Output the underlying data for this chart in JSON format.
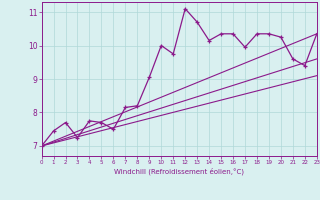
{
  "xlabel": "Windchill (Refroidissement éolien,°C)",
  "ylabel": "",
  "background_color": "#d9f0f0",
  "line_color": "#8b1a8b",
  "grid_color": "#b0d8d8",
  "xlim": [
    0,
    23
  ],
  "ylim": [
    6.7,
    11.3
  ],
  "yticks": [
    7,
    8,
    9,
    10,
    11
  ],
  "xticks": [
    0,
    1,
    2,
    3,
    4,
    5,
    6,
    7,
    8,
    9,
    10,
    11,
    12,
    13,
    14,
    15,
    16,
    17,
    18,
    19,
    20,
    21,
    22,
    23
  ],
  "series1_x": [
    0,
    1,
    2,
    3,
    4,
    5,
    6,
    7,
    8,
    9,
    10,
    11,
    12,
    13,
    14,
    15,
    16,
    17,
    18,
    19,
    20,
    21,
    22,
    23
  ],
  "series1_y": [
    7.0,
    7.45,
    7.7,
    7.25,
    7.75,
    7.7,
    7.5,
    8.15,
    8.2,
    9.05,
    10.0,
    9.75,
    11.1,
    10.7,
    10.15,
    10.35,
    10.35,
    9.95,
    10.35,
    10.35,
    10.25,
    9.6,
    9.4,
    10.35
  ],
  "series2_x": [
    0,
    23
  ],
  "series2_y": [
    7.0,
    10.35
  ],
  "series3_x": [
    0,
    23
  ],
  "series3_y": [
    7.0,
    9.6
  ],
  "series4_x": [
    0,
    23
  ],
  "series4_y": [
    7.0,
    9.1
  ]
}
